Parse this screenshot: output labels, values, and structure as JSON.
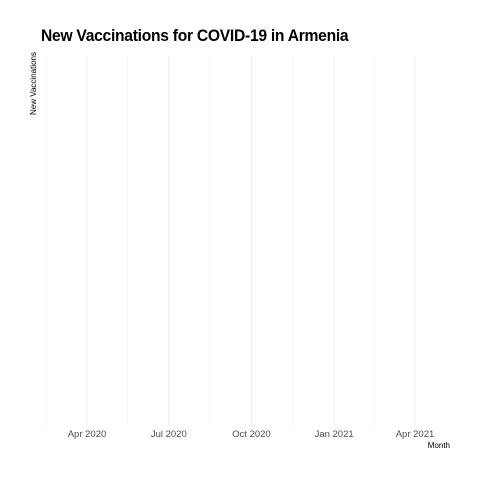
{
  "chart_data": {
    "type": "bar",
    "title": "New Vaccinations for COVID-19 in Armenia",
    "xlabel": "Month",
    "ylabel": "New Vaccinations",
    "x_ticks": [
      {
        "label": "Apr 2020",
        "date": "2020-04-01"
      },
      {
        "label": "Jul 2020",
        "date": "2020-07-01"
      },
      {
        "label": "Oct 2020",
        "date": "2020-10-01"
      },
      {
        "label": "Jan 2021",
        "date": "2021-01-01"
      },
      {
        "label": "Apr 2021",
        "date": "2021-04-01"
      }
    ],
    "xlim": [
      "2020-01-01",
      "2021-05-15"
    ],
    "values": [],
    "grid": true,
    "colors": {
      "grid": "#ebebeb",
      "tick_text": "#4d4d4d"
    }
  }
}
